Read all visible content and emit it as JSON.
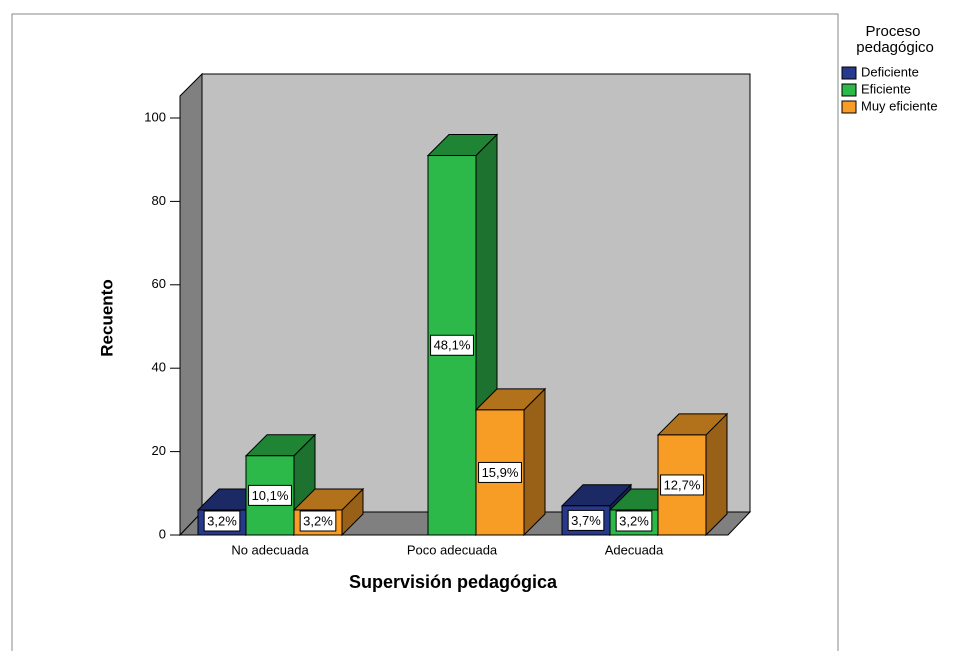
{
  "chart_data": {
    "type": "bar3d",
    "x_label": "Supervisión pedagógica",
    "y_label": "Recuento",
    "categories": [
      "No adecuada",
      "Poco adecuada",
      "Adecuada"
    ],
    "series": [
      {
        "name": "Deficiente",
        "color": "#26398c",
        "values": [
          6,
          null,
          7
        ],
        "value_labels": [
          "3,2%",
          null,
          "3,7%"
        ]
      },
      {
        "name": "Eficiente",
        "color": "#2db84a",
        "values": [
          19,
          91,
          6
        ],
        "value_labels": [
          "10,1%",
          "48,1%",
          "3,2%"
        ]
      },
      {
        "name": "Muy eficiente",
        "color": "#f79d26",
        "values": [
          6,
          30,
          24
        ],
        "value_labels": [
          "3,2%",
          "15,9%",
          "12,7%"
        ]
      }
    ],
    "ylim": [
      0,
      100
    ],
    "yticks": [
      0,
      20,
      40,
      60,
      80,
      100
    ],
    "legend_title": "Proceso pedagógico",
    "legend": "right"
  }
}
